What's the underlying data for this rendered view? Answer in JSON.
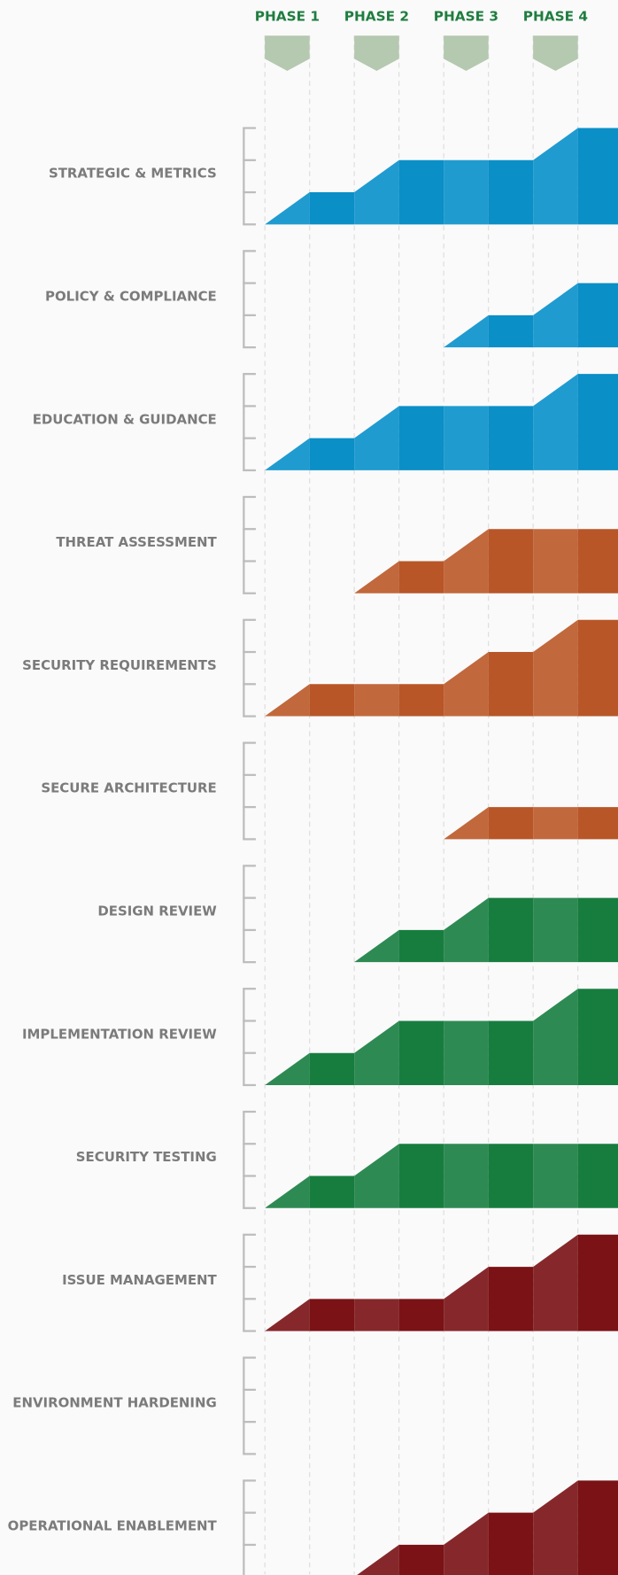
{
  "chart_data": {
    "type": "roadmap",
    "categories": [
      "PHASE 1",
      "PHASE 2",
      "PHASE 3",
      "PHASE 4"
    ],
    "ylim": [
      0,
      3
    ],
    "yticks": [
      0,
      1,
      2,
      3
    ],
    "series": [
      {
        "name": "STRATEGIC & METRICS",
        "colors": [
          "#1f9bd0",
          "#0a8fc7"
        ],
        "values": [
          1,
          2,
          2,
          3
        ]
      },
      {
        "name": "POLICY & COMPLIANCE",
        "colors": [
          "#1f9bd0",
          "#0a8fc7"
        ],
        "values": [
          0,
          0,
          1,
          2
        ]
      },
      {
        "name": "EDUCATION & GUIDANCE",
        "colors": [
          "#1f9bd0",
          "#0a8fc7"
        ],
        "values": [
          1,
          2,
          2,
          3
        ]
      },
      {
        "name": "THREAT ASSESSMENT",
        "colors": [
          "#c1683c",
          "#b85628"
        ],
        "values": [
          0,
          1,
          2,
          2
        ]
      },
      {
        "name": "SECURITY REQUIREMENTS",
        "colors": [
          "#c1683c",
          "#b85628"
        ],
        "values": [
          1,
          1,
          2,
          3
        ]
      },
      {
        "name": "SECURE ARCHITECTURE",
        "colors": [
          "#c1683c",
          "#b85628"
        ],
        "values": [
          0,
          0,
          1,
          1
        ]
      },
      {
        "name": "DESIGN REVIEW",
        "colors": [
          "#2d8a53",
          "#177d3f"
        ],
        "values": [
          0,
          1,
          2,
          2
        ]
      },
      {
        "name": "IMPLEMENTATION REVIEW",
        "colors": [
          "#2d8a53",
          "#177d3f"
        ],
        "values": [
          1,
          2,
          2,
          3
        ]
      },
      {
        "name": "SECURITY TESTING",
        "colors": [
          "#2d8a53",
          "#177d3f"
        ],
        "values": [
          1,
          2,
          2,
          2
        ]
      },
      {
        "name": "ISSUE MANAGEMENT",
        "colors": [
          "#86282b",
          "#7a1216"
        ],
        "values": [
          1,
          1,
          2,
          3
        ]
      },
      {
        "name": "ENVIRONMENT HARDENING",
        "colors": [
          "#86282b",
          "#7a1216"
        ],
        "values": [
          0,
          0,
          0,
          0
        ]
      },
      {
        "name": "OPERATIONAL ENABLEMENT",
        "colors": [
          "#86282b",
          "#7a1216"
        ],
        "values": [
          0,
          1,
          2,
          3
        ]
      }
    ]
  }
}
